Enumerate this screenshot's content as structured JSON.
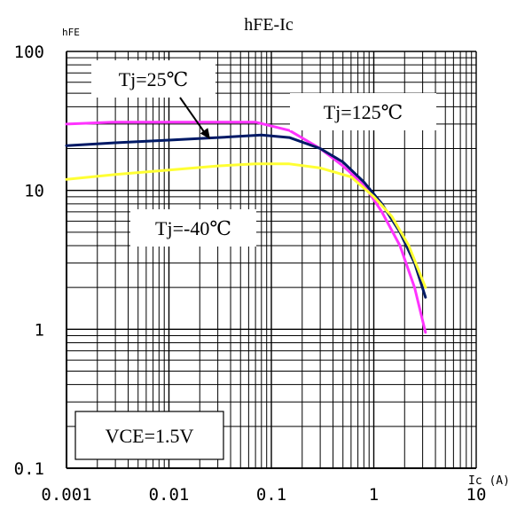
{
  "chart_data": {
    "type": "line",
    "title": "hFE-Ic",
    "ylabel": "hFE",
    "xlabel": "Ic (A)",
    "x_scale": "log",
    "y_scale": "log",
    "xlim": [
      0.001,
      10
    ],
    "ylim": [
      0.1,
      100
    ],
    "grid": true,
    "x_ticks": [
      {
        "value": 0.001,
        "label": "0.001"
      },
      {
        "value": 0.01,
        "label": "0.01"
      },
      {
        "value": 0.1,
        "label": "0.1"
      },
      {
        "value": 1,
        "label": "1"
      },
      {
        "value": 10,
        "label": "10"
      }
    ],
    "y_ticks": [
      {
        "value": 0.1,
        "label": "0.1"
      },
      {
        "value": 1,
        "label": "1"
      },
      {
        "value": 10,
        "label": "10"
      },
      {
        "value": 100,
        "label": "100"
      }
    ],
    "series": [
      {
        "name": "Tj=125℃",
        "color": "#ff33ff",
        "points": [
          [
            0.001,
            30
          ],
          [
            0.003,
            31
          ],
          [
            0.01,
            31
          ],
          [
            0.03,
            31
          ],
          [
            0.07,
            31
          ],
          [
            0.15,
            27
          ],
          [
            0.3,
            20
          ],
          [
            0.5,
            15
          ],
          [
            0.8,
            11
          ],
          [
            1.2,
            7
          ],
          [
            1.8,
            4
          ],
          [
            2.5,
            2
          ],
          [
            3.2,
            0.95
          ]
        ]
      },
      {
        "name": "Tj=25℃",
        "color": "#001a66",
        "points": [
          [
            0.001,
            21
          ],
          [
            0.003,
            22
          ],
          [
            0.01,
            23
          ],
          [
            0.03,
            24
          ],
          [
            0.08,
            25
          ],
          [
            0.15,
            24
          ],
          [
            0.3,
            20
          ],
          [
            0.5,
            16
          ],
          [
            0.8,
            11.5
          ],
          [
            1.2,
            8
          ],
          [
            1.8,
            5
          ],
          [
            2.5,
            3
          ],
          [
            3.2,
            1.7
          ]
        ]
      },
      {
        "name": "Tj=-40℃",
        "color": "#ffff33",
        "points": [
          [
            0.001,
            12
          ],
          [
            0.003,
            13
          ],
          [
            0.01,
            14
          ],
          [
            0.03,
            15
          ],
          [
            0.07,
            15.5
          ],
          [
            0.15,
            15.5
          ],
          [
            0.3,
            14.5
          ],
          [
            0.6,
            12.5
          ],
          [
            1,
            9
          ],
          [
            1.5,
            6.5
          ],
          [
            2.2,
            4
          ],
          [
            3.2,
            2
          ]
        ]
      }
    ],
    "annotations": [
      {
        "text": "Tj=25℃",
        "arrow": true
      },
      {
        "text": "Tj=125℃"
      },
      {
        "text": "Tj=-40℃"
      },
      {
        "text": "VCE=1.5V"
      }
    ]
  }
}
